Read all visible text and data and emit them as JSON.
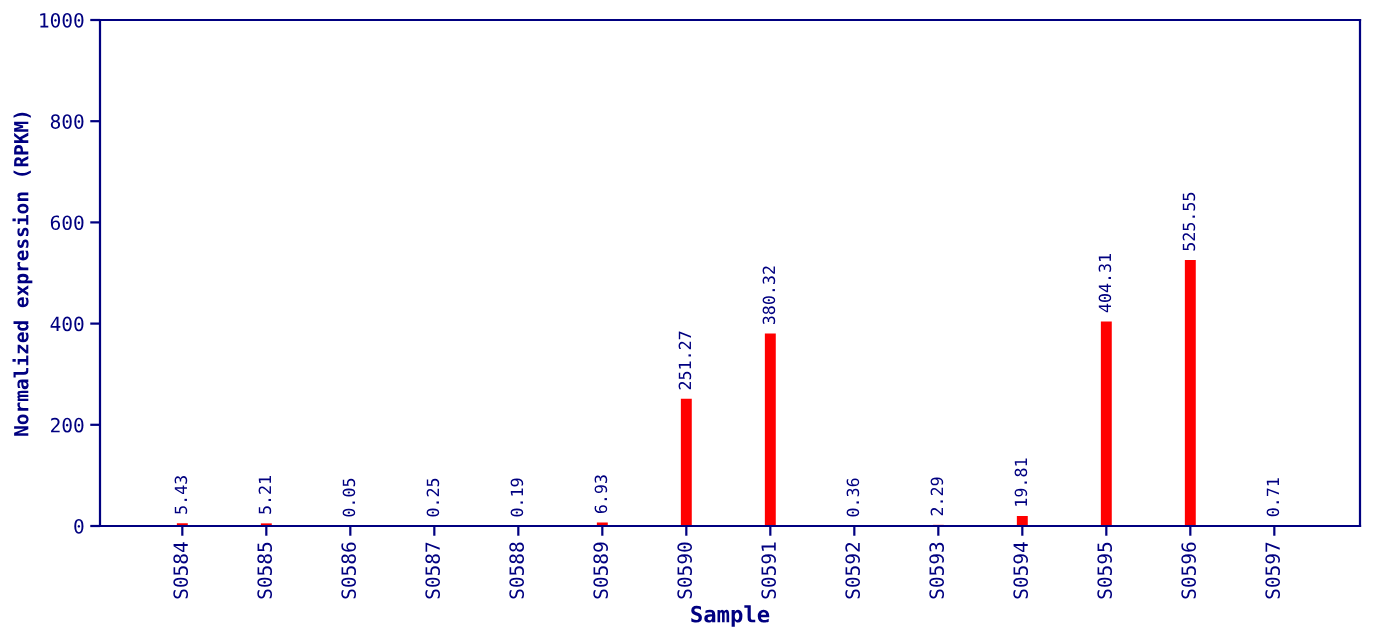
{
  "chart_data": {
    "type": "bar",
    "xlabel": "Sample",
    "ylabel": "Normalized expression (RPKM)",
    "categories": [
      "S0584",
      "S0585",
      "S0586",
      "S0587",
      "S0588",
      "S0589",
      "S0590",
      "S0591",
      "S0592",
      "S0593",
      "S0594",
      "S0595",
      "S0596",
      "S0597"
    ],
    "values": [
      5.43,
      5.21,
      0.05,
      0.25,
      0.19,
      6.93,
      251.27,
      380.32,
      0.36,
      2.29,
      19.81,
      404.31,
      525.55,
      0.71
    ],
    "color": "#ff0000",
    "ylim": [
      0,
      1000
    ],
    "yticks": [
      0,
      200,
      400,
      600,
      800,
      1000
    ],
    "data_labels": true,
    "grid": false
  }
}
